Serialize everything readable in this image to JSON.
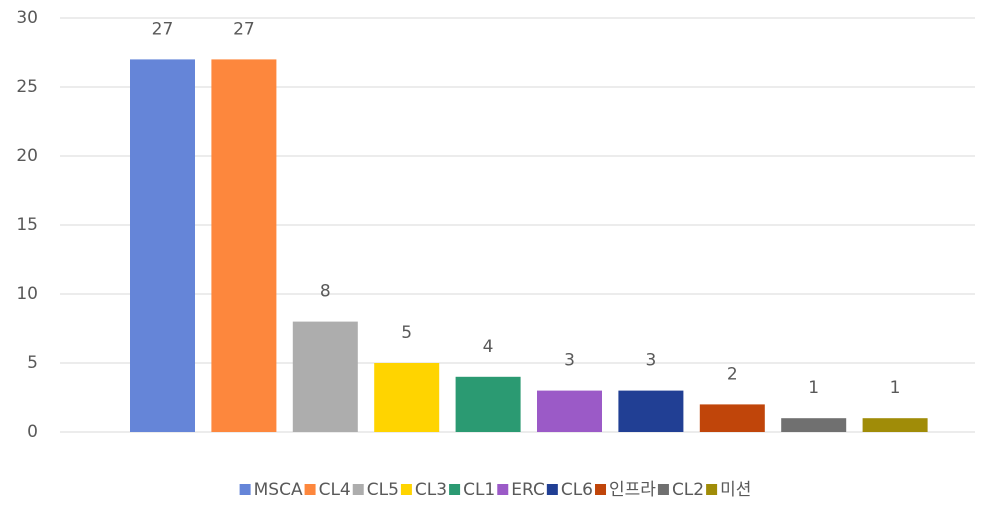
{
  "chart_data": {
    "type": "bar",
    "categories": [
      null
    ],
    "series": [
      {
        "name": "MSCA",
        "color": "#6585d8",
        "values": [
          27
        ]
      },
      {
        "name": "CL4",
        "color": "#fd873d",
        "values": [
          27
        ]
      },
      {
        "name": "CL5",
        "color": "#adadad",
        "values": [
          8
        ]
      },
      {
        "name": "CL3",
        "color": "#ffd400",
        "values": [
          5
        ]
      },
      {
        "name": "CL1",
        "color": "#2b9a72",
        "values": [
          4
        ]
      },
      {
        "name": "ERC",
        "color": "#9b5ac7",
        "values": [
          3
        ]
      },
      {
        "name": "CL6",
        "color": "#213f94",
        "values": [
          3
        ]
      },
      {
        "name": "인프라",
        "color": "#c0450a",
        "values": [
          2
        ]
      },
      {
        "name": "CL2",
        "color": "#707070",
        "values": [
          1
        ]
      },
      {
        "name": "미션",
        "color": "#a08c08",
        "values": [
          1
        ]
      }
    ],
    "ylim": [
      0,
      30
    ],
    "yticks": [
      0,
      5,
      10,
      15,
      20,
      25,
      30
    ],
    "grid": true,
    "legend": "bottom"
  }
}
